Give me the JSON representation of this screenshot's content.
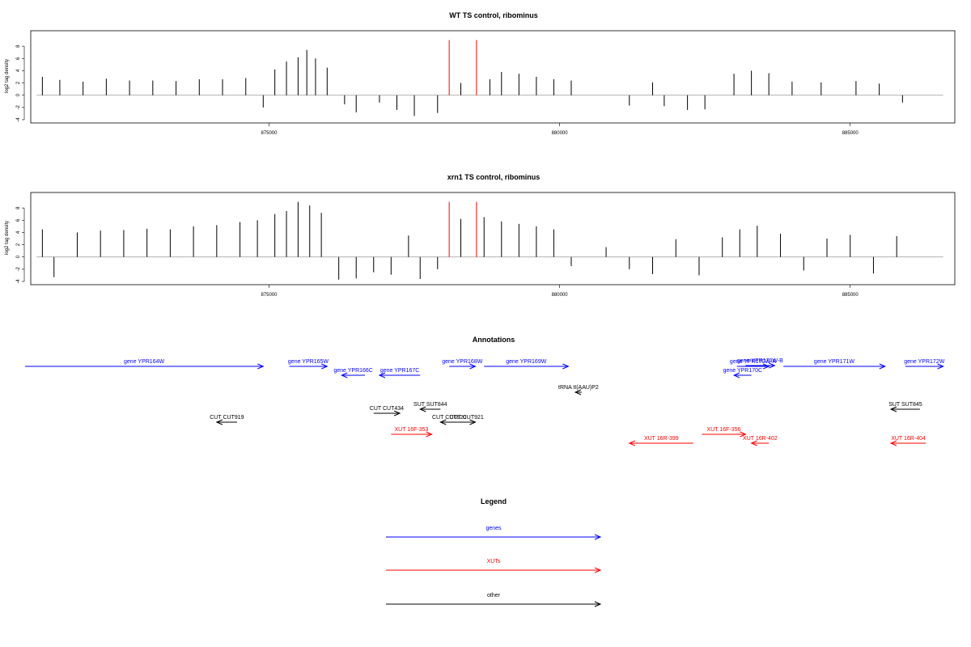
{
  "chart_data": [
    {
      "type": "bar",
      "title": "WT TS control, ribominus",
      "ylabel": "log2 tag density",
      "ylim": [
        -4,
        10
      ],
      "yticks": [
        -4,
        -2,
        0,
        2,
        4,
        6,
        8
      ],
      "xlim": [
        870900,
        886800
      ],
      "xticks": [
        875000,
        880000,
        885000
      ],
      "xtick_labels": [
        "875000",
        "880000",
        "885000"
      ],
      "grid": false,
      "bar_color": "#000000",
      "marker_color": "#ff0000",
      "markers": [
        {
          "x": 878100,
          "y": 9
        },
        {
          "x": 878570,
          "y": 9
        }
      ],
      "bars": [
        {
          "x": 871100,
          "y": 3.0
        },
        {
          "x": 871400,
          "y": 2.5
        },
        {
          "x": 871800,
          "y": 2.2
        },
        {
          "x": 872200,
          "y": 2.7
        },
        {
          "x": 872600,
          "y": 2.4
        },
        {
          "x": 873000,
          "y": 2.4
        },
        {
          "x": 873400,
          "y": 2.3
        },
        {
          "x": 873800,
          "y": 2.6
        },
        {
          "x": 874200,
          "y": 2.6
        },
        {
          "x": 874600,
          "y": 2.8
        },
        {
          "x": 874900,
          "y": -2.0
        },
        {
          "x": 875100,
          "y": 4.2
        },
        {
          "x": 875300,
          "y": 5.5
        },
        {
          "x": 875500,
          "y": 6.2
        },
        {
          "x": 875650,
          "y": 7.4
        },
        {
          "x": 875800,
          "y": 6.0
        },
        {
          "x": 876000,
          "y": 4.5
        },
        {
          "x": 876300,
          "y": -1.5
        },
        {
          "x": 876500,
          "y": -2.8
        },
        {
          "x": 876900,
          "y": -1.2
        },
        {
          "x": 877200,
          "y": -2.4
        },
        {
          "x": 877500,
          "y": -3.4
        },
        {
          "x": 877900,
          "y": -2.9
        },
        {
          "x": 878300,
          "y": 2.0
        },
        {
          "x": 878800,
          "y": 2.6
        },
        {
          "x": 879000,
          "y": 3.8
        },
        {
          "x": 879300,
          "y": 3.5
        },
        {
          "x": 879600,
          "y": 3.0
        },
        {
          "x": 879900,
          "y": 2.6
        },
        {
          "x": 880200,
          "y": 2.4
        },
        {
          "x": 881200,
          "y": -1.7
        },
        {
          "x": 881600,
          "y": 2.1
        },
        {
          "x": 881800,
          "y": -1.8
        },
        {
          "x": 882200,
          "y": -2.4
        },
        {
          "x": 882500,
          "y": -2.3
        },
        {
          "x": 883000,
          "y": 3.5
        },
        {
          "x": 883300,
          "y": 4.0
        },
        {
          "x": 883600,
          "y": 3.6
        },
        {
          "x": 884000,
          "y": 2.2
        },
        {
          "x": 884500,
          "y": 2.1
        },
        {
          "x": 885100,
          "y": 2.3
        },
        {
          "x": 885500,
          "y": 1.9
        },
        {
          "x": 885900,
          "y": -1.2
        }
      ]
    },
    {
      "type": "bar",
      "title": "xrn1 TS control, ribominus",
      "ylabel": "log2 tag density",
      "ylim": [
        -4,
        10
      ],
      "yticks": [
        -4,
        -2,
        0,
        2,
        4,
        6,
        8
      ],
      "xlim": [
        870900,
        886800
      ],
      "xticks": [
        875000,
        880000,
        885000
      ],
      "xtick_labels": [
        "875000",
        "880000",
        "885000"
      ],
      "grid": false,
      "bar_color": "#000000",
      "marker_color": "#ff0000",
      "markers": [
        {
          "x": 878100,
          "y": 9
        },
        {
          "x": 878570,
          "y": 9
        }
      ],
      "bars": [
        {
          "x": 871100,
          "y": 4.5
        },
        {
          "x": 871300,
          "y": -3.3
        },
        {
          "x": 871700,
          "y": 4.0
        },
        {
          "x": 872100,
          "y": 4.3
        },
        {
          "x": 872500,
          "y": 4.4
        },
        {
          "x": 872900,
          "y": 4.6
        },
        {
          "x": 873300,
          "y": 4.5
        },
        {
          "x": 873700,
          "y": 5.0
        },
        {
          "x": 874100,
          "y": 5.2
        },
        {
          "x": 874500,
          "y": 5.7
        },
        {
          "x": 874800,
          "y": 6.0
        },
        {
          "x": 875100,
          "y": 7.0
        },
        {
          "x": 875300,
          "y": 7.5
        },
        {
          "x": 875500,
          "y": 9.0
        },
        {
          "x": 875700,
          "y": 8.4
        },
        {
          "x": 875900,
          "y": 7.2
        },
        {
          "x": 876200,
          "y": -3.7
        },
        {
          "x": 876500,
          "y": -3.5
        },
        {
          "x": 876800,
          "y": -2.5
        },
        {
          "x": 877100,
          "y": -2.9
        },
        {
          "x": 877400,
          "y": 3.5
        },
        {
          "x": 877600,
          "y": -3.6
        },
        {
          "x": 877900,
          "y": -2.0
        },
        {
          "x": 878300,
          "y": 6.2
        },
        {
          "x": 878700,
          "y": 6.5
        },
        {
          "x": 879000,
          "y": 5.8
        },
        {
          "x": 879300,
          "y": 5.4
        },
        {
          "x": 879600,
          "y": 5.0
        },
        {
          "x": 879900,
          "y": 4.5
        },
        {
          "x": 880200,
          "y": -1.5
        },
        {
          "x": 880800,
          "y": 1.6
        },
        {
          "x": 881200,
          "y": -2.0
        },
        {
          "x": 881600,
          "y": -2.8
        },
        {
          "x": 882000,
          "y": 2.9
        },
        {
          "x": 882400,
          "y": -3.0
        },
        {
          "x": 882800,
          "y": 3.2
        },
        {
          "x": 883100,
          "y": 4.5
        },
        {
          "x": 883400,
          "y": 5.1
        },
        {
          "x": 883800,
          "y": 3.8
        },
        {
          "x": 884200,
          "y": -2.2
        },
        {
          "x": 884600,
          "y": 3.0
        },
        {
          "x": 885000,
          "y": 3.6
        },
        {
          "x": 885400,
          "y": -2.7
        },
        {
          "x": 885800,
          "y": 3.4
        }
      ]
    }
  ],
  "annotations": {
    "title": "Annotations",
    "items": [
      {
        "label": "gene YPR164W",
        "start": 870800,
        "end": 874900,
        "dir": "right",
        "color": "#0000ff"
      },
      {
        "label": "gene YPR165W",
        "start": 875350,
        "end": 876000,
        "dir": "right",
        "color": "#0000ff"
      },
      {
        "label": "gene YPR166C",
        "start": 876250,
        "end": 876650,
        "dir": "left",
        "color": "#0000ff"
      },
      {
        "label": "gene YPR167C",
        "start": 876900,
        "end": 877600,
        "dir": "left",
        "color": "#0000ff"
      },
      {
        "label": "gene YPR168W",
        "start": 878100,
        "end": 878550,
        "dir": "right",
        "color": "#0000ff"
      },
      {
        "label": "gene YPR169W",
        "start": 878700,
        "end": 880150,
        "dir": "right",
        "color": "#0000ff"
      },
      {
        "label": "gene YPR170W-A",
        "start": 883050,
        "end": 883600,
        "dir": "right",
        "color": "#0000ff"
      },
      {
        "label": "gene YPR170W-B",
        "start": 883200,
        "end": 883700,
        "dir": "right",
        "color": "#0000ff"
      },
      {
        "label": "gene YPR170C",
        "start": 883000,
        "end": 883300,
        "dir": "left",
        "color": "#0000ff"
      },
      {
        "label": "gene YPR171W",
        "start": 883850,
        "end": 885600,
        "dir": "right",
        "color": "#0000ff"
      },
      {
        "label": "gene YPR172W",
        "start": 885950,
        "end": 886600,
        "dir": "right",
        "color": "#0000ff"
      },
      {
        "label": "tRNA tI(AAU)P2",
        "start": 880270,
        "end": 880380,
        "dir": "left",
        "color": "#000000"
      },
      {
        "label": "SUT SUT844",
        "start": 877600,
        "end": 877950,
        "dir": "left",
        "color": "#000000"
      },
      {
        "label": "SUT SUT845",
        "start": 885700,
        "end": 886200,
        "dir": "left",
        "color": "#000000"
      },
      {
        "label": "CUT CUT434",
        "start": 876800,
        "end": 877250,
        "dir": "right",
        "color": "#000000"
      },
      {
        "label": "CUT CUT919",
        "start": 874100,
        "end": 874450,
        "dir": "left",
        "color": "#000000"
      },
      {
        "label": "CUT CUT920",
        "start": 877950,
        "end": 878250,
        "dir": "left",
        "color": "#000000"
      },
      {
        "label": "CUT CUT921",
        "start": 878250,
        "end": 878550,
        "dir": "right",
        "color": "#000000"
      },
      {
        "label": "XUT 16F-353",
        "start": 877100,
        "end": 877800,
        "dir": "right",
        "color": "#ff0000"
      },
      {
        "label": "XUT 16R-399",
        "start": 881200,
        "end": 882300,
        "dir": "left",
        "color": "#ff0000"
      },
      {
        "label": "XUT 16F-356",
        "start": 882450,
        "end": 883200,
        "dir": "right",
        "color": "#ff0000"
      },
      {
        "label": "XUT 16R-402",
        "start": 883300,
        "end": 883600,
        "dir": "left",
        "color": "#ff0000"
      },
      {
        "label": "XUT 16R-404",
        "start": 885700,
        "end": 886300,
        "dir": "left",
        "color": "#ff0000"
      }
    ]
  },
  "legend": {
    "title": "Legend",
    "items": [
      {
        "label": "genes",
        "color": "#0000ff"
      },
      {
        "label": "XUTs",
        "color": "#ff0000"
      },
      {
        "label": "other",
        "color": "#000000"
      }
    ]
  }
}
